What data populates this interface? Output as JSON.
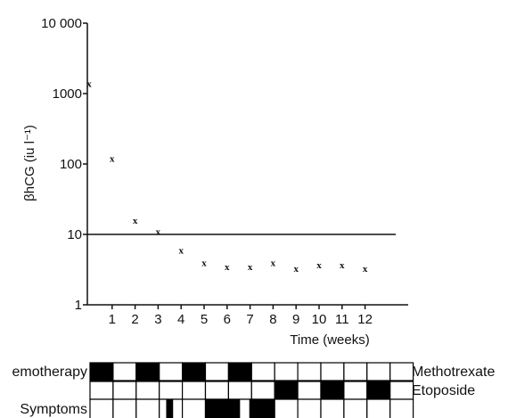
{
  "chart_data": {
    "type": "scatter",
    "title": "",
    "xlabel": "Time (weeks)",
    "ylabel": "βhCG (iu l⁻¹)",
    "yscale": "log",
    "ylim": [
      1,
      10000
    ],
    "xlim": [
      0,
      13
    ],
    "yticks": [
      1,
      10,
      100,
      1000,
      10000
    ],
    "ytick_labels": [
      "1",
      "10",
      "100",
      "1000",
      "10 000"
    ],
    "xticks": [
      1,
      2,
      3,
      4,
      5,
      6,
      7,
      8,
      9,
      10,
      11,
      12
    ],
    "xtick_labels": [
      "1",
      "2",
      "3",
      "4",
      "5",
      "6",
      "7",
      "8",
      "9",
      "10",
      "11",
      "12"
    ],
    "marker": "x",
    "reference_line": 10,
    "grid": false,
    "points": [
      {
        "x": 0,
        "y": 1400
      },
      {
        "x": 1,
        "y": 120
      },
      {
        "x": 2,
        "y": 16
      },
      {
        "x": 3,
        "y": 11
      },
      {
        "x": 4,
        "y": 6
      },
      {
        "x": 5,
        "y": 4
      },
      {
        "x": 6,
        "y": 3.5
      },
      {
        "x": 7,
        "y": 3.5
      },
      {
        "x": 8,
        "y": 4
      },
      {
        "x": 9,
        "y": 3.3
      },
      {
        "x": 10,
        "y": 3.7
      },
      {
        "x": 11,
        "y": 3.7
      },
      {
        "x": 12,
        "y": 3.3
      }
    ]
  },
  "schedule": {
    "chemotherapy_label": "emotherapy",
    "methotrexate_label": "Methotrexate",
    "etoposide_label": "Etoposide",
    "symptoms_label": "Symptoms",
    "methotrexate_cells": [
      1,
      0,
      1,
      0,
      1,
      0,
      1,
      0,
      0,
      0,
      0,
      0,
      0,
      0
    ],
    "etoposide_cells": [
      0,
      0,
      0,
      0,
      0,
      0,
      0,
      0,
      1,
      0,
      1,
      0,
      1,
      0
    ],
    "symptoms_ranges_weeks": [
      [
        3.3,
        3.6
      ],
      [
        5.0,
        6.5
      ],
      [
        6.9,
        8.0
      ]
    ]
  }
}
